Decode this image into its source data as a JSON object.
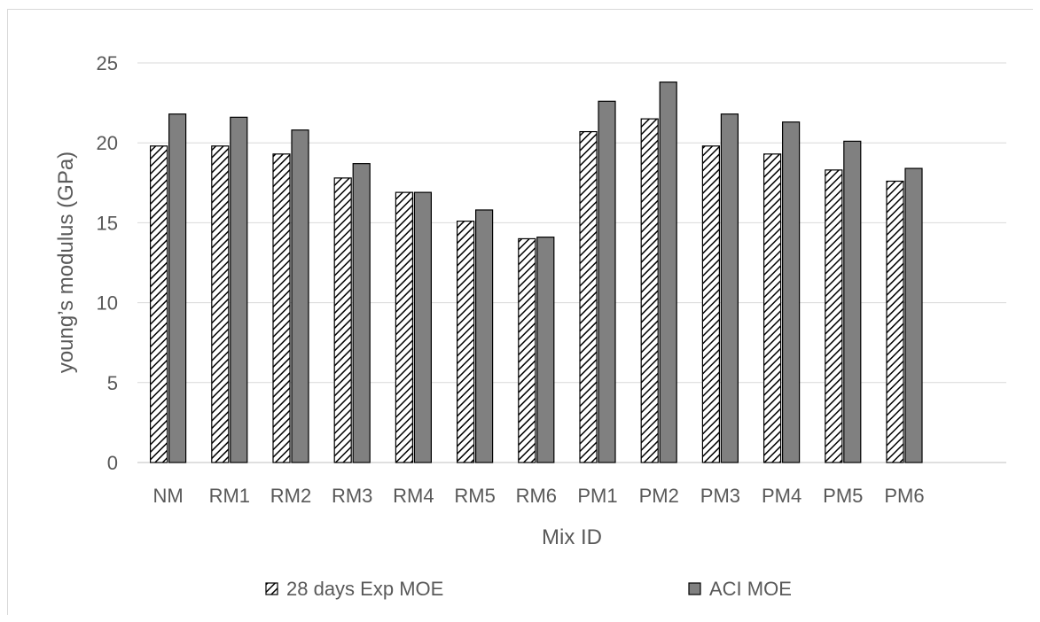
{
  "chart_data": {
    "type": "bar",
    "title": "",
    "xlabel": "Mix ID",
    "ylabel": "young’s modulus  (GPa)",
    "ylim": [
      0,
      25
    ],
    "yticks": [
      0,
      5,
      10,
      15,
      20,
      25
    ],
    "grid": "horizontal",
    "legend_position": "bottom",
    "categories": [
      "NM",
      "RM1",
      "RM2",
      "RM3",
      "RM4",
      "RM5",
      "RM6",
      "PM1",
      "PM2",
      "PM3",
      "PM4",
      "PM5",
      "PM6"
    ],
    "series": [
      {
        "name": "28 days Exp MOE",
        "pattern": "diagonal-hatch",
        "color": "#000000",
        "values": [
          19.8,
          19.8,
          19.3,
          17.8,
          16.9,
          15.1,
          14.0,
          20.7,
          21.5,
          19.8,
          19.3,
          18.3,
          17.6
        ]
      },
      {
        "name": "ACI  MOE",
        "pattern": "solid",
        "color": "#808080",
        "values": [
          21.8,
          21.6,
          20.8,
          18.7,
          16.9,
          15.8,
          14.1,
          22.6,
          23.8,
          21.8,
          21.3,
          20.1,
          18.4
        ]
      }
    ]
  }
}
